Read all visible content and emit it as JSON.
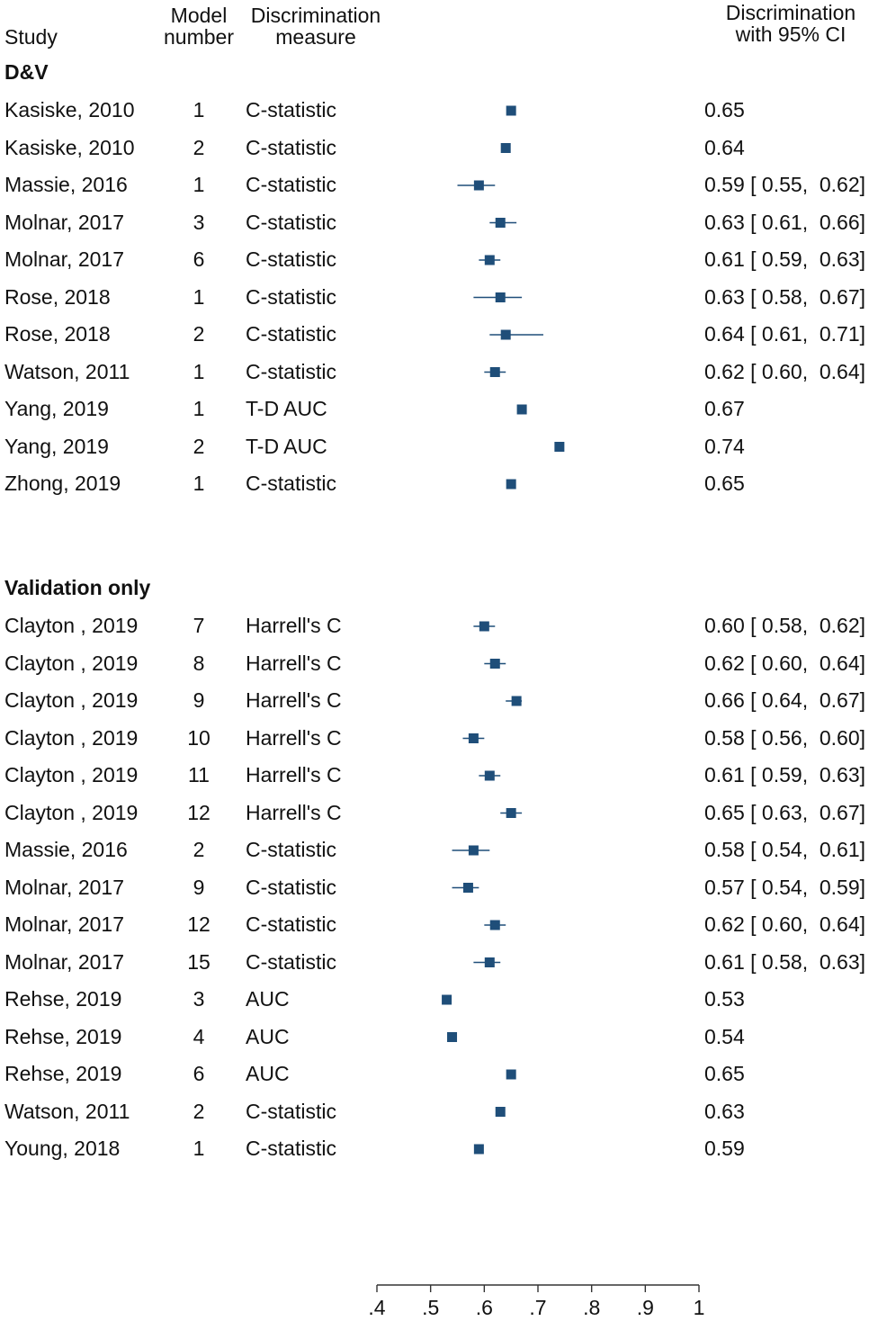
{
  "headers": {
    "study": "Study",
    "model_line1": "Model",
    "model_line2": "number",
    "measure_line1": "Discrimination",
    "measure_line2": "measure",
    "ci_line1": "Discrimination",
    "ci_line2": "with 95% CI"
  },
  "groups": [
    {
      "label": "D&V",
      "rows": [
        {
          "study": "Kasiske, 2010",
          "model": "1",
          "measure": "C-statistic",
          "estimate": 0.65,
          "lower": null,
          "upper": null,
          "text": "0.65"
        },
        {
          "study": "Kasiske, 2010",
          "model": "2",
          "measure": "C-statistic",
          "estimate": 0.64,
          "lower": null,
          "upper": null,
          "text": "0.64"
        },
        {
          "study": "Massie, 2016",
          "model": "1",
          "measure": "C-statistic",
          "estimate": 0.59,
          "lower": 0.55,
          "upper": 0.62,
          "text": "0.59 [ 0.55,  0.62]"
        },
        {
          "study": "Molnar, 2017",
          "model": "3",
          "measure": "C-statistic",
          "estimate": 0.63,
          "lower": 0.61,
          "upper": 0.66,
          "text": "0.63 [ 0.61,  0.66]"
        },
        {
          "study": "Molnar, 2017",
          "model": "6",
          "measure": "C-statistic",
          "estimate": 0.61,
          "lower": 0.59,
          "upper": 0.63,
          "text": "0.61 [ 0.59,  0.63]"
        },
        {
          "study": "Rose, 2018",
          "model": "1",
          "measure": "C-statistic",
          "estimate": 0.63,
          "lower": 0.58,
          "upper": 0.67,
          "text": "0.63 [ 0.58,  0.67]"
        },
        {
          "study": "Rose, 2018",
          "model": "2",
          "measure": "C-statistic",
          "estimate": 0.64,
          "lower": 0.61,
          "upper": 0.71,
          "text": "0.64 [ 0.61,  0.71]"
        },
        {
          "study": "Watson, 2011",
          "model": "1",
          "measure": "C-statistic",
          "estimate": 0.62,
          "lower": 0.6,
          "upper": 0.64,
          "text": "0.62 [ 0.60,  0.64]"
        },
        {
          "study": "Yang, 2019",
          "model": "1",
          "measure": "T-D AUC",
          "estimate": 0.67,
          "lower": null,
          "upper": null,
          "text": "0.67"
        },
        {
          "study": "Yang, 2019",
          "model": "2",
          "measure": "T-D AUC",
          "estimate": 0.74,
          "lower": null,
          "upper": null,
          "text": "0.74"
        },
        {
          "study": "Zhong, 2019",
          "model": "1",
          "measure": "C-statistic",
          "estimate": 0.65,
          "lower": null,
          "upper": null,
          "text": "0.65"
        }
      ]
    },
    {
      "label": "Validation only",
      "rows": [
        {
          "study": "Clayton , 2019",
          "model": "7",
          "measure": "Harrell's C",
          "estimate": 0.6,
          "lower": 0.58,
          "upper": 0.62,
          "text": "0.60 [ 0.58,  0.62]"
        },
        {
          "study": "Clayton , 2019",
          "model": "8",
          "measure": "Harrell's C",
          "estimate": 0.62,
          "lower": 0.6,
          "upper": 0.64,
          "text": "0.62 [ 0.60,  0.64]"
        },
        {
          "study": "Clayton , 2019",
          "model": "9",
          "measure": "Harrell's C",
          "estimate": 0.66,
          "lower": 0.64,
          "upper": 0.67,
          "text": "0.66 [ 0.64,  0.67]"
        },
        {
          "study": "Clayton , 2019",
          "model": "10",
          "measure": "Harrell's C",
          "estimate": 0.58,
          "lower": 0.56,
          "upper": 0.6,
          "text": "0.58 [ 0.56,  0.60]"
        },
        {
          "study": "Clayton , 2019",
          "model": "11",
          "measure": "Harrell's C",
          "estimate": 0.61,
          "lower": 0.59,
          "upper": 0.63,
          "text": "0.61 [ 0.59,  0.63]"
        },
        {
          "study": "Clayton , 2019",
          "model": "12",
          "measure": "Harrell's C",
          "estimate": 0.65,
          "lower": 0.63,
          "upper": 0.67,
          "text": "0.65 [ 0.63,  0.67]"
        },
        {
          "study": "Massie, 2016",
          "model": "2",
          "measure": "C-statistic",
          "estimate": 0.58,
          "lower": 0.54,
          "upper": 0.61,
          "text": "0.58 [ 0.54,  0.61]"
        },
        {
          "study": "Molnar, 2017",
          "model": "9",
          "measure": "C-statistic",
          "estimate": 0.57,
          "lower": 0.54,
          "upper": 0.59,
          "text": "0.57 [ 0.54,  0.59]"
        },
        {
          "study": "Molnar, 2017",
          "model": "12",
          "measure": "C-statistic",
          "estimate": 0.62,
          "lower": 0.6,
          "upper": 0.64,
          "text": "0.62 [ 0.60,  0.64]"
        },
        {
          "study": "Molnar, 2017",
          "model": "15",
          "measure": "C-statistic",
          "estimate": 0.61,
          "lower": 0.58,
          "upper": 0.63,
          "text": "0.61 [ 0.58,  0.63]"
        },
        {
          "study": "Rehse, 2019",
          "model": "3",
          "measure": "AUC",
          "estimate": 0.53,
          "lower": null,
          "upper": null,
          "text": "0.53"
        },
        {
          "study": "Rehse, 2019",
          "model": "4",
          "measure": "AUC",
          "estimate": 0.54,
          "lower": null,
          "upper": null,
          "text": "0.54"
        },
        {
          "study": "Rehse, 2019",
          "model": "6",
          "measure": "AUC",
          "estimate": 0.65,
          "lower": null,
          "upper": null,
          "text": "0.65"
        },
        {
          "study": "Watson, 2011",
          "model": "2",
          "measure": "C-statistic",
          "estimate": 0.63,
          "lower": null,
          "upper": null,
          "text": "0.63"
        },
        {
          "study": "Young, 2018",
          "model": "1",
          "measure": "C-statistic",
          "estimate": 0.59,
          "lower": null,
          "upper": null,
          "text": "0.59"
        }
      ]
    }
  ],
  "chart_data": {
    "type": "forest",
    "xlim": [
      0.4,
      1.0
    ],
    "xticks": [
      0.4,
      0.5,
      0.6,
      0.7,
      0.8,
      0.9,
      1.0
    ],
    "xtick_labels": [
      ".4",
      ".5",
      ".6",
      ".7",
      ".8",
      ".9",
      "1"
    ],
    "marker_color": "#1f4e79",
    "grid": false
  }
}
